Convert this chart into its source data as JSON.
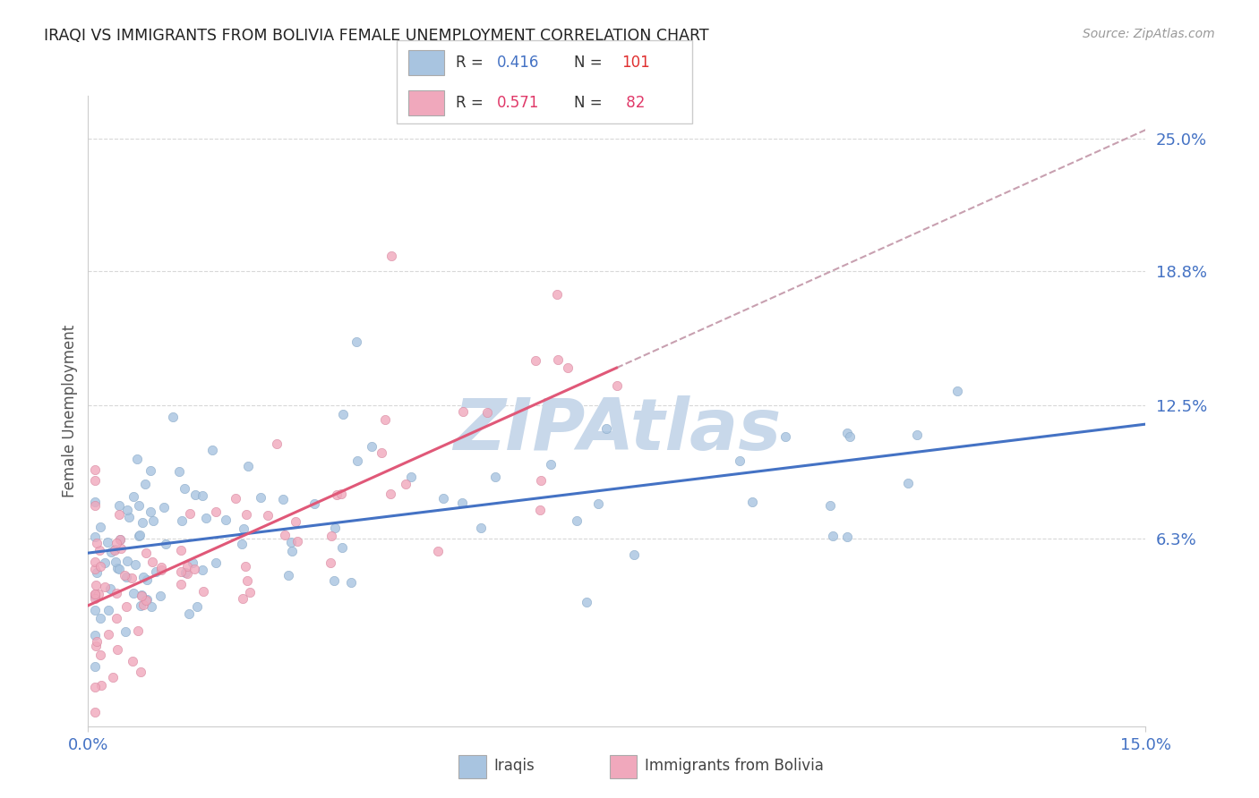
{
  "title": "IRAQI VS IMMIGRANTS FROM BOLIVIA FEMALE UNEMPLOYMENT CORRELATION CHART",
  "source": "Source: ZipAtlas.com",
  "ylabel_label": "Female Unemployment",
  "xmin": 0.0,
  "xmax": 0.15,
  "ymin": -0.025,
  "ymax": 0.27,
  "ytick_positions": [
    0.063,
    0.125,
    0.188,
    0.25
  ],
  "ytick_labels": [
    "6.3%",
    "12.5%",
    "18.8%",
    "25.0%"
  ],
  "xtick_positions": [
    0.0,
    0.15
  ],
  "xtick_labels": [
    "0.0%",
    "15.0%"
  ],
  "color_iraqi": "#a8c4e0",
  "color_bolivia": "#f0a8bc",
  "color_iraqi_line": "#4472c4",
  "color_bolivia_line": "#e05878",
  "color_dashed": "#d4a0b0",
  "watermark_color": "#c8d8ea"
}
